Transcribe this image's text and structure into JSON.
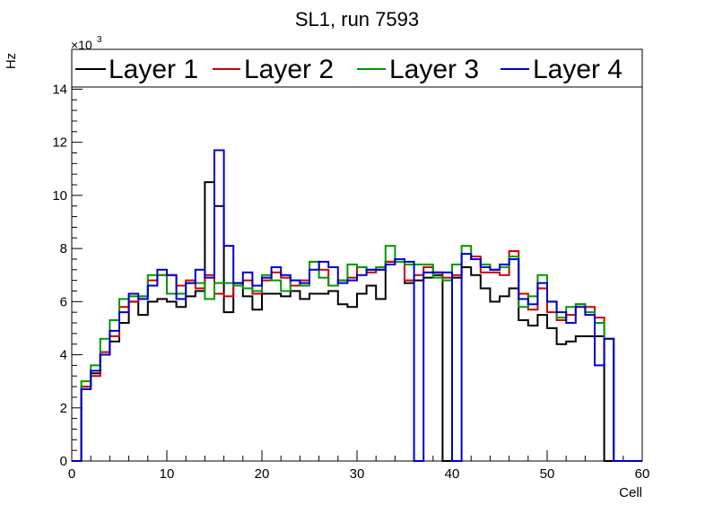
{
  "chart_data": {
    "type": "line",
    "step": true,
    "title": "SL1, run 7593",
    "xlabel": "Cell",
    "ylabel": "Hz",
    "exponent_label": "×10",
    "exponent_power": "3",
    "xlim": [
      0,
      60
    ],
    "ylim": [
      0,
      15.5
    ],
    "xticks": [
      0,
      10,
      20,
      30,
      40,
      50,
      60
    ],
    "yticks": [
      0,
      2,
      4,
      6,
      8,
      10,
      12,
      14
    ],
    "tick_labels_x": [
      "0",
      "10",
      "20",
      "30",
      "40",
      "50",
      "60"
    ],
    "tick_labels_y": [
      "0",
      "2",
      "4",
      "6",
      "8",
      "10",
      "12",
      "14"
    ],
    "grid": false,
    "legend_position": "top",
    "series": [
      {
        "name": "Layer 1",
        "color": "#000000",
        "values": [
          0,
          2.8,
          3.3,
          4.0,
          4.5,
          5.2,
          6.0,
          5.5,
          6.0,
          6.1,
          6.0,
          5.8,
          6.2,
          6.4,
          10.5,
          9.6,
          5.6,
          6.7,
          6.2,
          5.7,
          6.3,
          6.3,
          6.2,
          6.4,
          6.1,
          6.3,
          6.3,
          6.4,
          5.9,
          5.8,
          6.3,
          6.6,
          6.1,
          7.5,
          7.6,
          6.7,
          6.8,
          6.9,
          7.0,
          0.0,
          6.9,
          7.3,
          7.0,
          6.5,
          6.0,
          6.2,
          6.5,
          5.3,
          5.1,
          5.5,
          5.0,
          4.4,
          4.5,
          4.7,
          4.7,
          4.7,
          0,
          0,
          0,
          0
        ]
      },
      {
        "name": "Layer 2",
        "color": "#cc0000",
        "values": [
          0,
          2.8,
          3.2,
          4.1,
          4.7,
          5.8,
          6.0,
          6.2,
          6.8,
          7.0,
          7.0,
          6.6,
          6.8,
          6.5,
          7.0,
          6.3,
          6.2,
          6.7,
          6.8,
          6.3,
          6.8,
          7.1,
          6.9,
          6.6,
          6.8,
          7.5,
          7.2,
          6.6,
          6.8,
          6.9,
          7.3,
          7.1,
          7.2,
          7.5,
          7.6,
          6.8,
          7.0,
          7.3,
          7.1,
          6.9,
          7.0,
          7.8,
          7.7,
          7.1,
          7.1,
          7.0,
          7.9,
          6.3,
          5.7,
          6.5,
          5.6,
          5.3,
          5.5,
          5.9,
          5.8,
          5.4,
          4.6,
          0,
          0,
          0
        ]
      },
      {
        "name": "Layer 3",
        "color": "#009900",
        "values": [
          0,
          3.0,
          3.6,
          4.6,
          5.3,
          6.1,
          6.2,
          6.2,
          7.0,
          7.0,
          6.3,
          6.3,
          6.7,
          6.7,
          6.1,
          6.7,
          6.7,
          6.6,
          6.5,
          6.4,
          7.0,
          6.8,
          6.4,
          6.8,
          6.6,
          7.5,
          6.9,
          6.6,
          6.8,
          7.4,
          7.3,
          7.2,
          7.3,
          8.1,
          7.5,
          7.4,
          7.4,
          7.4,
          6.9,
          6.8,
          7.4,
          8.1,
          7.6,
          7.4,
          7.2,
          7.3,
          7.7,
          5.8,
          6.2,
          7.0,
          6.0,
          5.4,
          5.8,
          5.9,
          5.6,
          5.2,
          4.6,
          0,
          0,
          0
        ]
      },
      {
        "name": "Layer 4",
        "color": "#0000cc",
        "values": [
          0,
          2.7,
          3.4,
          4.0,
          4.9,
          5.6,
          6.3,
          6.1,
          6.6,
          7.2,
          7.0,
          6.1,
          6.7,
          7.2,
          6.9,
          11.7,
          8.1,
          6.7,
          7.1,
          6.6,
          6.9,
          7.3,
          7.0,
          6.8,
          6.7,
          7.2,
          7.5,
          7.3,
          6.7,
          6.8,
          7.0,
          7.2,
          7.2,
          7.4,
          7.6,
          7.5,
          0.0,
          7.1,
          7.1,
          7.1,
          0.0,
          7.8,
          7.6,
          7.3,
          7.2,
          7.4,
          7.6,
          6.1,
          5.9,
          6.7,
          6.0,
          5.6,
          5.2,
          5.8,
          5.5,
          3.6,
          4.6,
          0,
          0,
          0
        ]
      }
    ]
  }
}
